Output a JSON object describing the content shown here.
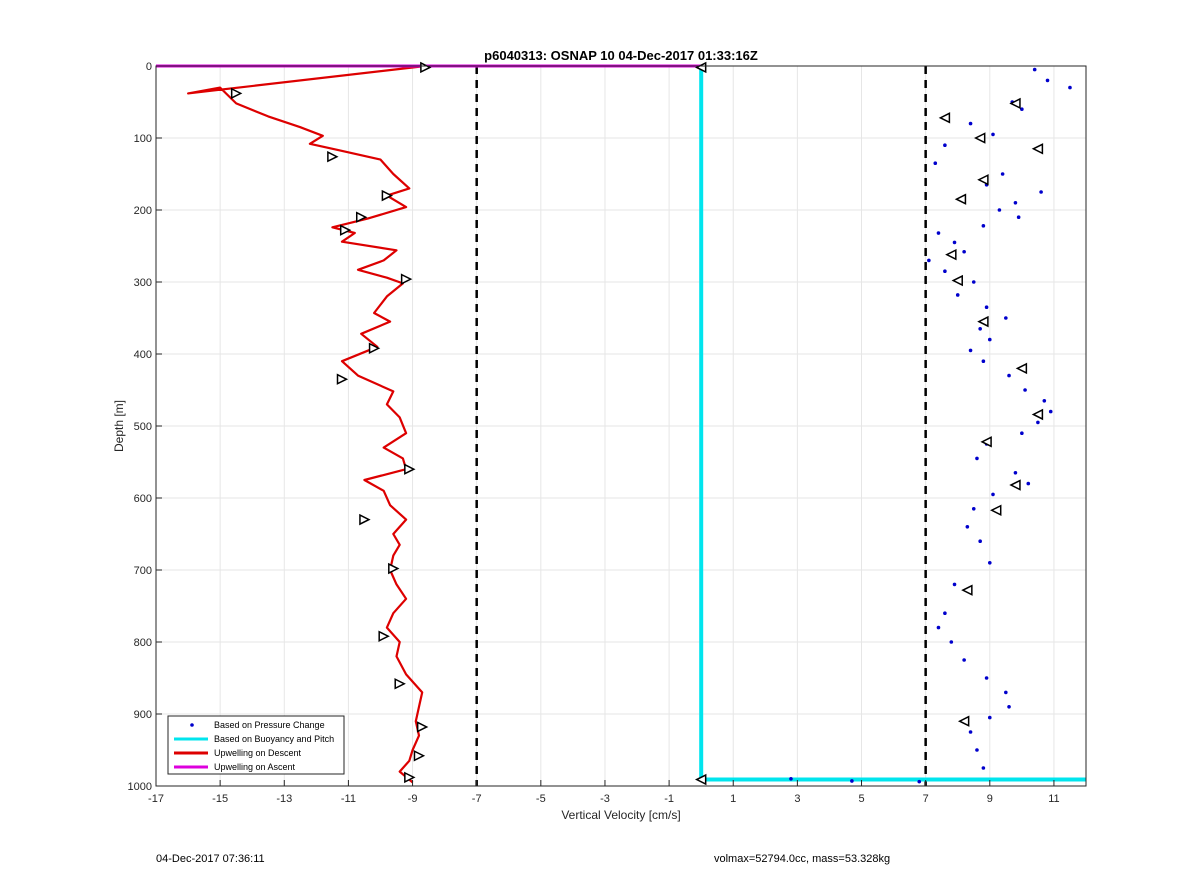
{
  "chart_data": {
    "type": "line",
    "title": "p6040313: OSNAP 10 04-Dec-2017 01:33:16Z",
    "xlabel": "Vertical Velocity [cm/s]",
    "ylabel": "Depth [m]",
    "xlim": [
      -17,
      12
    ],
    "ylim": [
      1000,
      0
    ],
    "y_reversed": true,
    "grid": true,
    "x_ticks": [
      -17,
      -15,
      -13,
      -11,
      -9,
      -7,
      -5,
      -3,
      -1,
      1,
      3,
      5,
      7,
      9,
      11
    ],
    "y_ticks": [
      0,
      100,
      200,
      300,
      400,
      500,
      600,
      700,
      800,
      900,
      1000
    ],
    "legend_position": "bottom-left",
    "legend": [
      {
        "label": "Based on Pressure Change",
        "color": "#0000cc",
        "style": "dot"
      },
      {
        "label": "Based on Buoyancy and Pitch",
        "color": "#00e5ee",
        "style": "line"
      },
      {
        "label": "Upwelling on Descent",
        "color": "#dd0000",
        "style": "line"
      },
      {
        "label": "Upwelling on Ascent",
        "color": "#dd00dd",
        "style": "line"
      }
    ],
    "reference_lines": {
      "x": [
        -7,
        7
      ],
      "style": "dashed",
      "color": "#000000"
    },
    "series": [
      {
        "name": "Upwelling on Descent",
        "color": "#dd0000",
        "x": [
          -8.6,
          -16.0,
          -15.0,
          -14.5,
          -13.5,
          -12.5,
          -11.8,
          -12.2,
          -11.3,
          -10.0,
          -9.6,
          -9.1,
          -9.8,
          -9.2,
          -10.4,
          -11.5,
          -10.8,
          -11.2,
          -9.5,
          -9.9,
          -10.7,
          -9.8,
          -9.3,
          -9.8,
          -10.2,
          -9.7,
          -10.6,
          -10.1,
          -11.2,
          -10.7,
          -9.6,
          -9.8,
          -9.4,
          -9.2,
          -9.9,
          -9.3,
          -9.2,
          -10.5,
          -9.9,
          -9.7,
          -9.2,
          -9.6,
          -9.4,
          -9.6,
          -9.7,
          -9.5,
          -9.2,
          -9.6,
          -9.8,
          -9.4,
          -9.5,
          -9.2,
          -8.7,
          -8.8,
          -8.9,
          -8.8,
          -9.0,
          -9.1,
          -9.4,
          -9.0
        ],
        "y": [
          0,
          38,
          30,
          52,
          70,
          85,
          97,
          108,
          117,
          130,
          150,
          170,
          180,
          196,
          212,
          224,
          232,
          244,
          256,
          270,
          283,
          294,
          302,
          320,
          343,
          355,
          372,
          390,
          410,
          430,
          452,
          470,
          488,
          510,
          530,
          545,
          560,
          575,
          590,
          610,
          630,
          650,
          665,
          680,
          700,
          720,
          740,
          760,
          780,
          800,
          820,
          845,
          870,
          890,
          910,
          930,
          950,
          965,
          980,
          995
        ]
      },
      {
        "name": "Based on Buoyancy and Pitch",
        "color": "#00e5ee",
        "x": [
          0.0,
          0.0,
          12.0
        ],
        "y": [
          0,
          991,
          991
        ]
      },
      {
        "name": "Upwelling on Ascent",
        "color": "#dd00dd",
        "x": [
          -17.0,
          0.0
        ],
        "y": [
          0,
          0
        ]
      },
      {
        "name": "Based on Pressure Change",
        "color": "#0000cc",
        "x": [
          10.4,
          10.8,
          11.5,
          9.7,
          10.0,
          8.4,
          9.1,
          7.6,
          7.3,
          9.4,
          8.9,
          10.6,
          9.8,
          9.3,
          9.9,
          8.8,
          7.4,
          7.9,
          8.2,
          7.1,
          7.6,
          8.5,
          8.0,
          8.9,
          9.5,
          8.7,
          9.0,
          8.4,
          8.8,
          9.6,
          10.1,
          10.7,
          10.9,
          10.5,
          10.0,
          8.9,
          8.6,
          9.8,
          10.2,
          9.1,
          8.5,
          8.3,
          8.7,
          9.0,
          7.9,
          7.6,
          7.4,
          7.8,
          8.2,
          8.9,
          9.5,
          9.6,
          9.0,
          8.4,
          8.6,
          8.8,
          2.8,
          4.7,
          6.8
        ],
        "y": [
          5,
          20,
          30,
          50,
          60,
          80,
          95,
          110,
          135,
          150,
          165,
          175,
          190,
          200,
          210,
          222,
          232,
          245,
          258,
          270,
          285,
          300,
          318,
          335,
          350,
          365,
          380,
          395,
          410,
          430,
          450,
          465,
          480,
          495,
          510,
          525,
          545,
          565,
          580,
          595,
          615,
          640,
          660,
          690,
          720,
          760,
          780,
          800,
          825,
          850,
          870,
          890,
          905,
          925,
          950,
          975,
          990,
          993,
          994
        ]
      }
    ],
    "markers": {
      "descent": {
        "x": [
          -8.6,
          -14.5,
          -11.5,
          -9.8,
          -10.6,
          -11.1,
          -9.2,
          -10.2,
          -11.2,
          -9.1,
          -10.5,
          -9.6,
          -9.9,
          -9.4,
          -8.7,
          -8.8,
          -9.1
        ],
        "y": [
          2,
          38,
          126,
          180,
          210,
          228,
          296,
          392,
          435,
          560,
          630,
          698,
          792,
          858,
          918,
          958,
          988
        ]
      },
      "ascent": {
        "x": [
          0.0,
          9.8,
          7.6,
          10.5,
          8.7,
          8.8,
          8.1,
          7.8,
          8.0,
          8.8,
          10.0,
          10.5,
          8.9,
          9.8,
          9.2,
          8.3,
          8.2,
          0.0
        ],
        "y": [
          991,
          52,
          72,
          115,
          100,
          158,
          185,
          262,
          298,
          355,
          420,
          484,
          522,
          582,
          617,
          728,
          910,
          2
        ]
      }
    }
  },
  "footer": {
    "timestamp": "04-Dec-2017 07:36:11",
    "info": "volmax=52794.0cc, mass=53.328kg"
  }
}
